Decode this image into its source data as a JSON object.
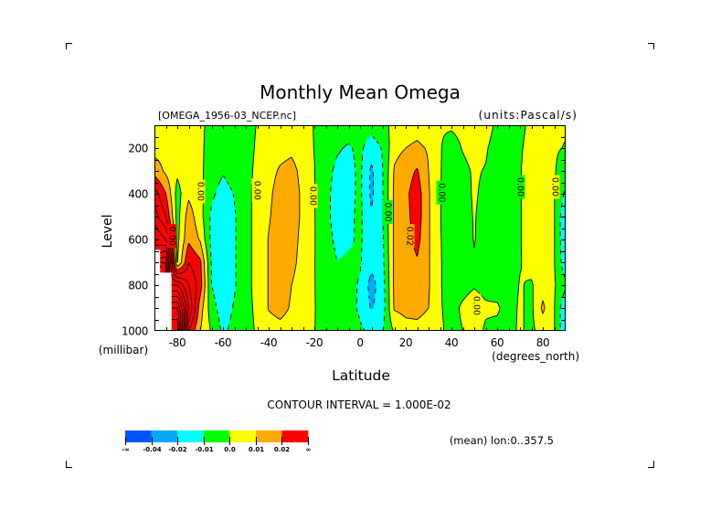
{
  "chart_data": {
    "type": "contour",
    "title": "Monthly Mean Omega",
    "file_label": "[OMEGA_1956-03_NCEP.nc]",
    "units_label": "(units:Pascal/s)",
    "xlabel": "Latitude",
    "x_units": "(degrees_north)",
    "ylabel": "Level",
    "y_units": "(millibar)",
    "xlim": [
      -90,
      90
    ],
    "ylim": [
      100,
      1000
    ],
    "y_direction": "pressure decreasing upward",
    "x_ticks": [
      -80,
      -60,
      -40,
      -20,
      0,
      20,
      40,
      60,
      80
    ],
    "x_tick_labels": [
      "-80",
      "-60",
      "-40",
      "-20",
      "0",
      "20",
      "40",
      "60",
      "80"
    ],
    "y_ticks": [
      200,
      400,
      600,
      800,
      1000
    ],
    "y_tick_labels": [
      "200",
      "400",
      "600",
      "800",
      "1000"
    ],
    "contour_interval": 0.01,
    "contour_interval_label": "CONTOUR INTERVAL = 1.000E-02",
    "averaging_note": "(mean) lon:0..357.5",
    "legend_position": "bottom-left",
    "colorbar": {
      "boundaries": [
        -0.04,
        -0.02,
        -0.01,
        0.0,
        0.01,
        0.02
      ],
      "colors": [
        "#0055ff",
        "#00aaff",
        "#00ffff",
        "#00ff00",
        "#ffff00",
        "#ffaa00",
        "#ff0000"
      ],
      "labels": [
        "-∞",
        "-0.04",
        "-0.02",
        "-0.01",
        "0.0",
        "0.01",
        "0.02",
        "∞"
      ],
      "missing_color": "#ffffff"
    },
    "contour_labels": [
      {
        "text": "0.00",
        "lat": -82.4,
        "level": 585
      },
      {
        "text": "0.00",
        "lat": -70,
        "level": 390
      },
      {
        "text": "0.00",
        "lat": -45.2,
        "level": 385
      },
      {
        "text": "0.00",
        "lat": -20.8,
        "level": 410
      },
      {
        "text": "0.00",
        "lat": 12,
        "level": 480
      },
      {
        "text": "0.02",
        "lat": 21.6,
        "level": 585
      },
      {
        "text": "0.00",
        "lat": 35.6,
        "level": 395
      },
      {
        "text": "0.00",
        "lat": 50.8,
        "level": 890
      },
      {
        "text": "0.00",
        "lat": 70,
        "level": 370
      },
      {
        "text": "0.00",
        "lat": 85.2,
        "level": 370
      }
    ],
    "grid": {
      "lat": [
        -90,
        -85,
        -80,
        -75,
        -70,
        -65,
        -60,
        -55,
        -50,
        -45,
        -40,
        -35,
        -30,
        -25,
        -20,
        -15,
        -10,
        -5,
        0,
        5,
        10,
        15,
        20,
        25,
        30,
        35,
        40,
        45,
        50,
        55,
        60,
        65,
        70,
        75,
        80,
        85,
        90
      ],
      "level": [
        100,
        200,
        300,
        400,
        500,
        600,
        700,
        800,
        900,
        1000
      ],
      "values": [
        [
          0.004,
          0.004,
          0.004,
          0.004,
          0.002,
          -0.003,
          -0.004,
          -0.003,
          -0.002,
          0.0002,
          0.005,
          0.005,
          0.005,
          0.004,
          -0.0005,
          -0.003,
          -0.005,
          -0.006,
          -0.006,
          -0.006,
          -0.003,
          0.003,
          0.005,
          0.006,
          0.004,
          0.0005,
          0.001,
          0.002,
          0.004,
          0.004,
          -0.002,
          -0.002,
          -0.002,
          0.002,
          0.003,
          0.002,
          0.001
        ],
        [
          0.006,
          0.006,
          0.005,
          0.005,
          0.002,
          -0.004,
          -0.008,
          -0.004,
          -0.003,
          0.001,
          0.006,
          0.007,
          0.008,
          0.005,
          -0.0003,
          -0.005,
          -0.009,
          -0.011,
          -0.008,
          -0.015,
          -0.009,
          0.007,
          0.01,
          0.012,
          0.009,
          0.0005,
          -0.003,
          0.0005,
          0.003,
          0.001,
          -0.004,
          -0.003,
          -0.001,
          0.003,
          0.004,
          0.001,
          -0.0005
        ],
        [
          0.016,
          0.008,
          0.002,
          0.006,
          0.002,
          -0.005,
          -0.009,
          -0.006,
          -0.003,
          0.002,
          0.007,
          0.011,
          0.013,
          0.007,
          0.0003,
          -0.007,
          -0.012,
          -0.013,
          -0.008,
          -0.022,
          -0.01,
          0.011,
          0.016,
          0.021,
          0.01,
          0.0005,
          -0.004,
          -0.002,
          0.001,
          -0.0005,
          -0.004,
          -0.004,
          -0.0005,
          0.004,
          0.004,
          0.001,
          -0.006
        ],
        [
          0.035,
          0.02,
          -0.004,
          0.008,
          0.003,
          -0.008,
          -0.014,
          -0.0095,
          -0.003,
          0.003,
          0.008,
          0.014,
          0.015,
          0.008,
          0.0005,
          -0.008,
          -0.013,
          -0.013,
          -0.008,
          -0.022,
          -0.01,
          0.012,
          0.018,
          0.025,
          0.011,
          0.0005,
          -0.005,
          -0.003,
          0.001,
          -0.002,
          -0.004,
          -0.005,
          -0.0005,
          0.004,
          0.004,
          0.0003,
          -0.012
        ],
        [
          0.045,
          0.03,
          -0.004,
          0.015,
          0.004,
          -0.012,
          -0.017,
          -0.011,
          -0.003,
          0.003,
          0.009,
          0.015,
          0.015,
          0.008,
          0.0005,
          -0.008,
          -0.013,
          -0.012,
          -0.008,
          -0.019,
          -0.01,
          0.012,
          0.017,
          0.025,
          0.011,
          0.0005,
          -0.007,
          -0.003,
          0.0005,
          -0.003,
          -0.005,
          -0.008,
          -0.0005,
          0.004,
          0.004,
          0.0005,
          -0.019
        ],
        [
          0.06,
          0.05,
          -0.003,
          0.018,
          0.009,
          -0.013,
          -0.018,
          -0.011,
          -0.003,
          0.003,
          0.0105,
          0.016,
          0.014,
          0.007,
          0.0005,
          -0.007,
          -0.012,
          -0.011,
          -0.009,
          -0.015,
          -0.011,
          0.012,
          0.016,
          0.023,
          0.011,
          0.0005,
          -0.004,
          -0.003,
          0.0003,
          -0.003,
          -0.005,
          -0.01,
          -0.0005,
          0.004,
          0.004,
          0.0005,
          -0.019
        ],
        [
          null,
          0.09,
          -0.001,
          0.03,
          0.022,
          -0.011,
          -0.018,
          -0.011,
          -0.003,
          0.003,
          0.0105,
          0.016,
          0.013,
          0.006,
          0.0003,
          -0.005,
          -0.01,
          -0.009,
          -0.009,
          -0.017,
          -0.012,
          0.012,
          0.015,
          0.019,
          0.011,
          0.0005,
          -0.003,
          -0.003,
          -0.0005,
          -0.003,
          -0.004,
          -0.008,
          -0.0005,
          0.003,
          0.004,
          0.0005,
          -0.017
        ],
        [
          null,
          null,
          0.06,
          0.04,
          0.025,
          -0.01,
          -0.017,
          -0.011,
          -0.003,
          0.003,
          0.0105,
          0.015,
          0.01,
          0.005,
          0.0002,
          -0.003,
          -0.006,
          -0.007,
          -0.011,
          -0.024,
          -0.014,
          0.012,
          0.014,
          0.015,
          0.011,
          0.0005,
          -0.003,
          -0.002,
          -0.0005,
          -0.002,
          -0.003,
          -0.004,
          0.0005,
          -0.001,
          0.006,
          0.001,
          -0.008
        ],
        [
          null,
          null,
          0.1,
          0.05,
          0.015,
          -0.006,
          -0.015,
          -0.009,
          -0.003,
          0.002,
          0.0105,
          0.013,
          0.009,
          0.004,
          0.0002,
          -0.002,
          -0.004,
          -0.008,
          -0.011,
          -0.021,
          -0.014,
          0.011,
          0.013,
          0.014,
          0.01,
          0.0005,
          -0.002,
          0.001,
          0.003,
          0.001,
          0.001,
          -0.003,
          0.001,
          -0.002,
          0.012,
          0.0005,
          -0.019
        ],
        [
          null,
          null,
          0.12,
          0.03,
          0.01,
          -0.001,
          -0.012,
          -0.007,
          -0.003,
          0.001,
          0.006,
          0.007,
          0.006,
          0.003,
          0.0002,
          -0.003,
          -0.004,
          -0.007,
          -0.009,
          -0.011,
          -0.01,
          0.001,
          0.006,
          0.006,
          0.004,
          0.001,
          -0.002,
          0.0,
          0.003,
          -0.001,
          -0.002,
          -0.002,
          0.001,
          -0.002,
          0.004,
          0.0005,
          -0.019
        ]
      ]
    }
  }
}
